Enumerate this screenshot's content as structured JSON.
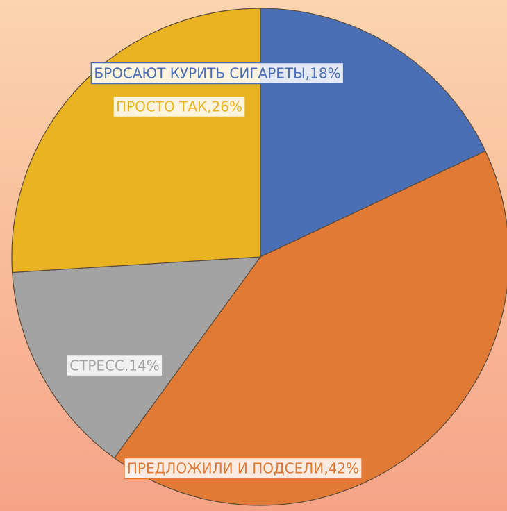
{
  "chart_data": {
    "type": "pie",
    "values": [
      18,
      42,
      14,
      26
    ],
    "value_labels": [
      "БРОСАЮТ КУРИТЬ СИГАРЕТЫ,18%",
      "ПРЕДЛОЖИЛИ И ПОДСЕЛИ,42%",
      "СТРЕСС,14%",
      "ПРОСТО ТАК,26%"
    ],
    "colors": [
      "#4a6fb5",
      "#e07a35",
      "#a3a3a3",
      "#e9b322"
    ]
  }
}
